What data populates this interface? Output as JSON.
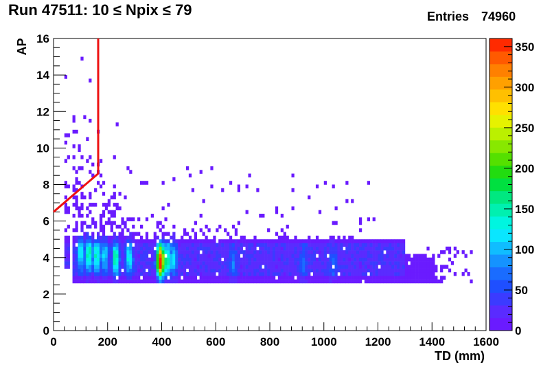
{
  "chart_data": {
    "type": "heatmap",
    "title": "Run 47511: 10 ≤ Npix ≤ 79",
    "stats_label": "Entries",
    "stats_value": "74960",
    "xlabel": "TD (mm)",
    "ylabel": "AP",
    "xlim": [
      0,
      1600
    ],
    "ylim": [
      0,
      16
    ],
    "x_ticks": [
      0,
      200,
      400,
      600,
      800,
      1000,
      1200,
      1400,
      1600
    ],
    "y_ticks": [
      0,
      2,
      4,
      6,
      8,
      10,
      12,
      14,
      16
    ],
    "z_range": [
      0,
      360
    ],
    "z_ticks": [
      0,
      50,
      100,
      150,
      200,
      250,
      300,
      350
    ],
    "palette": [
      "#6a1bff",
      "#5a2bff",
      "#3b3bff",
      "#1f4fff",
      "#1a6cff",
      "#1593ff",
      "#10bdff",
      "#0ae6ff",
      "#00f5e0",
      "#00f0b0",
      "#00e880",
      "#00e040",
      "#22dc10",
      "#55e000",
      "#88e800",
      "#bbf000",
      "#e6f200",
      "#ffe000",
      "#ffc000",
      "#ffa000",
      "#ff8000",
      "#ff5a00",
      "#ff2a00"
    ],
    "cut_line": {
      "color": "#ee1111",
      "points": [
        [
          0,
          6.5
        ],
        [
          165,
          8.6
        ],
        [
          165,
          16
        ]
      ]
    },
    "hot_spots": [
      {
        "x": 95,
        "y": 4.2,
        "z": 110
      },
      {
        "x": 125,
        "y": 4.1,
        "z": 140
      },
      {
        "x": 155,
        "y": 4.0,
        "z": 130
      },
      {
        "x": 185,
        "y": 4.0,
        "z": 90
      },
      {
        "x": 225,
        "y": 3.9,
        "z": 140
      },
      {
        "x": 275,
        "y": 3.9,
        "z": 110
      },
      {
        "x": 390,
        "y": 3.7,
        "z": 355
      },
      {
        "x": 415,
        "y": 3.8,
        "z": 140
      },
      {
        "x": 440,
        "y": 3.8,
        "z": 90
      },
      {
        "x": 660,
        "y": 3.6,
        "z": 50
      },
      {
        "x": 920,
        "y": 3.6,
        "z": 45
      },
      {
        "x": 1030,
        "y": 3.6,
        "z": 45
      }
    ]
  }
}
